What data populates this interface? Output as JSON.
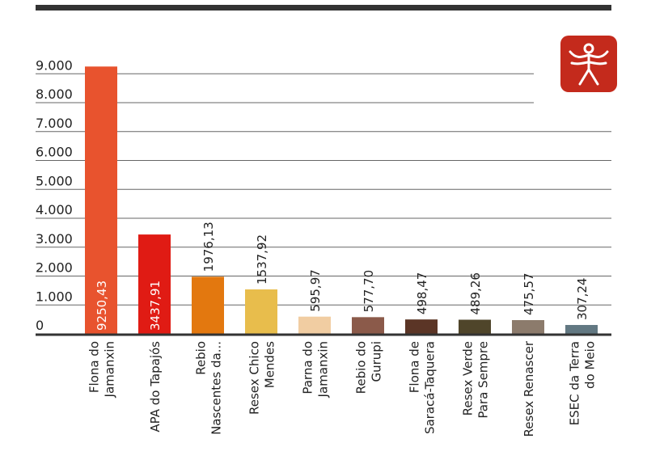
{
  "colors": {
    "top_bar": "#333333",
    "logo_bg": "#c42a1c",
    "gridline": "#666666"
  },
  "logo": {
    "icon": "human-figure-logo-icon"
  },
  "chart_data": {
    "type": "bar",
    "title": "",
    "xlabel": "",
    "ylabel": "",
    "ylim": [
      0,
      9000
    ],
    "y_ticks": [
      {
        "value": 0,
        "label": "0"
      },
      {
        "value": 1000,
        "label": "1.000"
      },
      {
        "value": 2000,
        "label": "2.000"
      },
      {
        "value": 3000,
        "label": "3.000"
      },
      {
        "value": 4000,
        "label": "4.000"
      },
      {
        "value": 5000,
        "label": "5.000"
      },
      {
        "value": 6000,
        "label": "6.000"
      },
      {
        "value": 7000,
        "label": "7.000"
      },
      {
        "value": 8000,
        "label": "8.000"
      },
      {
        "value": 9000,
        "label": "9.000"
      }
    ],
    "grid": true,
    "data_labels_inside": true,
    "bars": [
      {
        "category": [
          "Flona do",
          "Jamanxin"
        ],
        "value": 9250.43,
        "label": "9250,43",
        "color": "#e8532e"
      },
      {
        "category": [
          "APA do Tapajós"
        ],
        "value": 3437.91,
        "label": "3437,91",
        "color": "#e01b14"
      },
      {
        "category": [
          "Rebio",
          "Nascentes da..."
        ],
        "value": 1976.13,
        "label": "1976,13",
        "color": "#e3780f"
      },
      {
        "category": [
          "Resex Chico",
          "Mendes"
        ],
        "value": 1537.92,
        "label": "1537,92",
        "color": "#e8bd4c"
      },
      {
        "category": [
          "Parna do",
          "Jamanxin"
        ],
        "value": 595.97,
        "label": "595,97",
        "color": "#f1cda2"
      },
      {
        "category": [
          "Rebio do",
          "Gurupi"
        ],
        "value": 577.7,
        "label": "577,70",
        "color": "#8b5a4a"
      },
      {
        "category": [
          "Flona de",
          "Saracá-Taquera"
        ],
        "value": 498.47,
        "label": "498,47",
        "color": "#5b3526"
      },
      {
        "category": [
          "Resex Verde",
          "Para Sempre"
        ],
        "value": 489.26,
        "label": "489,26",
        "color": "#4f452a"
      },
      {
        "category": [
          "Resex Renascer"
        ],
        "value": 475.57,
        "label": "475,57",
        "color": "#8c7b6c"
      },
      {
        "category": [
          "ESEC da Terra",
          "do Meio"
        ],
        "value": 307.24,
        "label": "307,24",
        "color": "#627882"
      }
    ]
  }
}
